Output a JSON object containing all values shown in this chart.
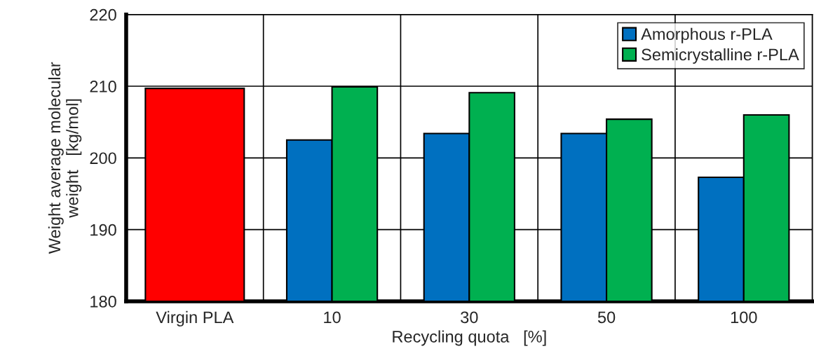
{
  "chart_data": {
    "type": "bar",
    "xlabel": "Recycling quota   [%]",
    "ylabel": "Weight average molecular\nweight   [kg/mol]",
    "categories": [
      "Virgin PLA",
      "10",
      "30",
      "50",
      "100"
    ],
    "series": [
      {
        "color": "#ff0000",
        "values": [
          209.7,
          null,
          null,
          null,
          null
        ]
      },
      {
        "name": "Amorphous r-PLA",
        "color": "#0070c0",
        "values": [
          null,
          202.5,
          203.4,
          203.4,
          197.3
        ]
      },
      {
        "name": "Semicrystalline r-PLA",
        "color": "#00b050",
        "values": [
          null,
          209.9,
          209.1,
          205.4,
          206.0
        ]
      }
    ],
    "ylim": [
      180,
      220
    ],
    "yticks": [
      180,
      190,
      200,
      210,
      220
    ],
    "grid": true,
    "legend": "top right"
  }
}
